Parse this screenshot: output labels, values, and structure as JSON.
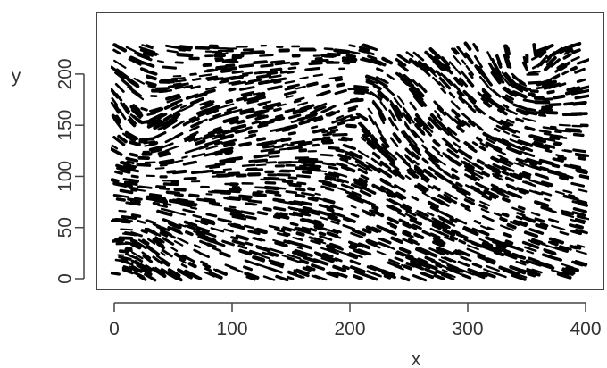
{
  "chart_data": {
    "type": "scatter",
    "title": "",
    "xlabel": "x",
    "ylabel": "y",
    "xlim": [
      0,
      400
    ],
    "ylim": [
      0,
      220
    ],
    "x_ticks": [
      0,
      100,
      200,
      300,
      400
    ],
    "y_ticks": [
      0,
      50,
      100,
      150,
      200
    ],
    "x_tick_labels": [
      "0",
      "100",
      "200",
      "300",
      "400"
    ],
    "y_tick_labels": [
      "0",
      "50",
      "100",
      "150",
      "200"
    ],
    "grid": false,
    "legend": "none",
    "mark_style": "short oriented line segments forming a streamline-like texture",
    "colors": {
      "marks": "#000000",
      "axes": "#333333",
      "background": "#ffffff"
    }
  }
}
